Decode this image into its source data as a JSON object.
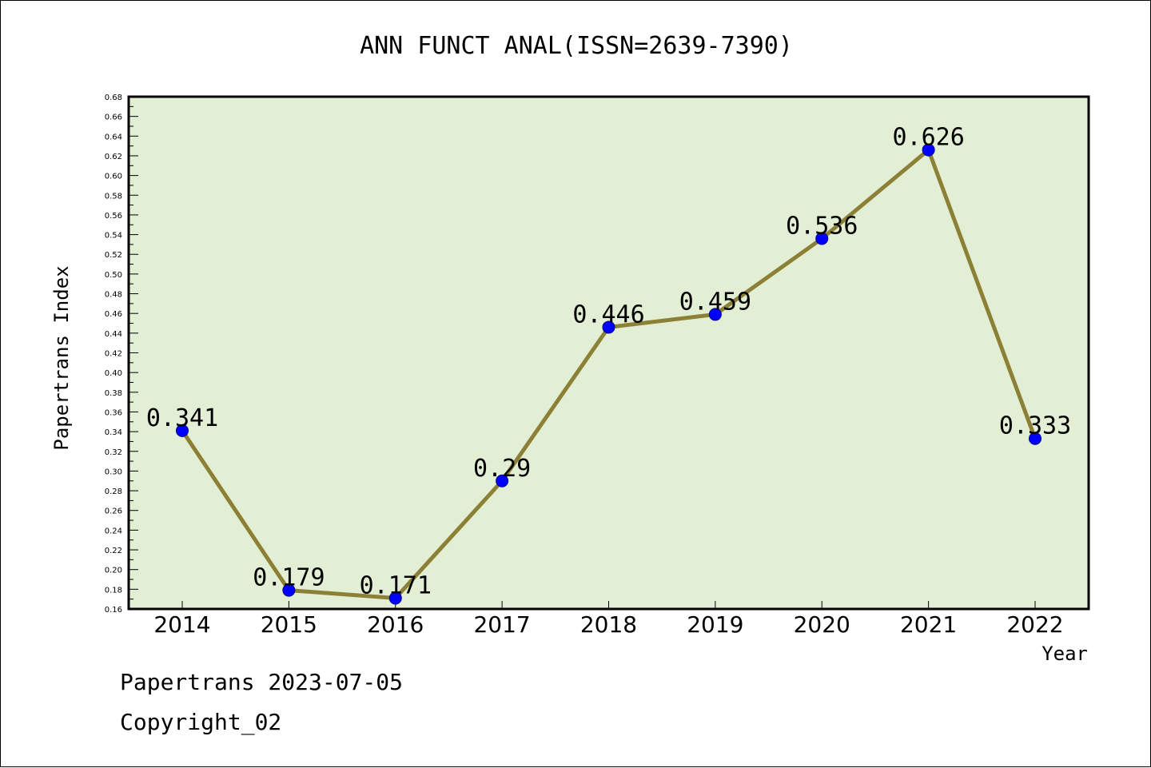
{
  "chart_data": {
    "type": "line",
    "title": "ANN FUNCT ANAL(ISSN=2639-7390)",
    "xlabel": "Year",
    "ylabel": "Papertrans Index",
    "categories": [
      "2014",
      "2015",
      "2016",
      "2017",
      "2018",
      "2019",
      "2020",
      "2021",
      "2022"
    ],
    "series": [
      {
        "values": [
          0.341,
          0.179,
          0.171,
          0.29,
          0.446,
          0.459,
          0.536,
          0.626,
          0.333
        ],
        "labels": [
          "0.341",
          "0.179",
          "0.171",
          "0.29",
          "0.446",
          "0.459",
          "0.536",
          "0.626",
          "0.333"
        ],
        "line_color": "#8b8035",
        "marker_color": "#0000ff"
      }
    ],
    "ylim": [
      0.16,
      0.68
    ],
    "ytick_step": 0.02,
    "plot_background": "#e2efd5",
    "grid": false,
    "legend": "none"
  },
  "footer": {
    "line1": "Papertrans 2023-07-05",
    "line2": "Copyright_02"
  }
}
